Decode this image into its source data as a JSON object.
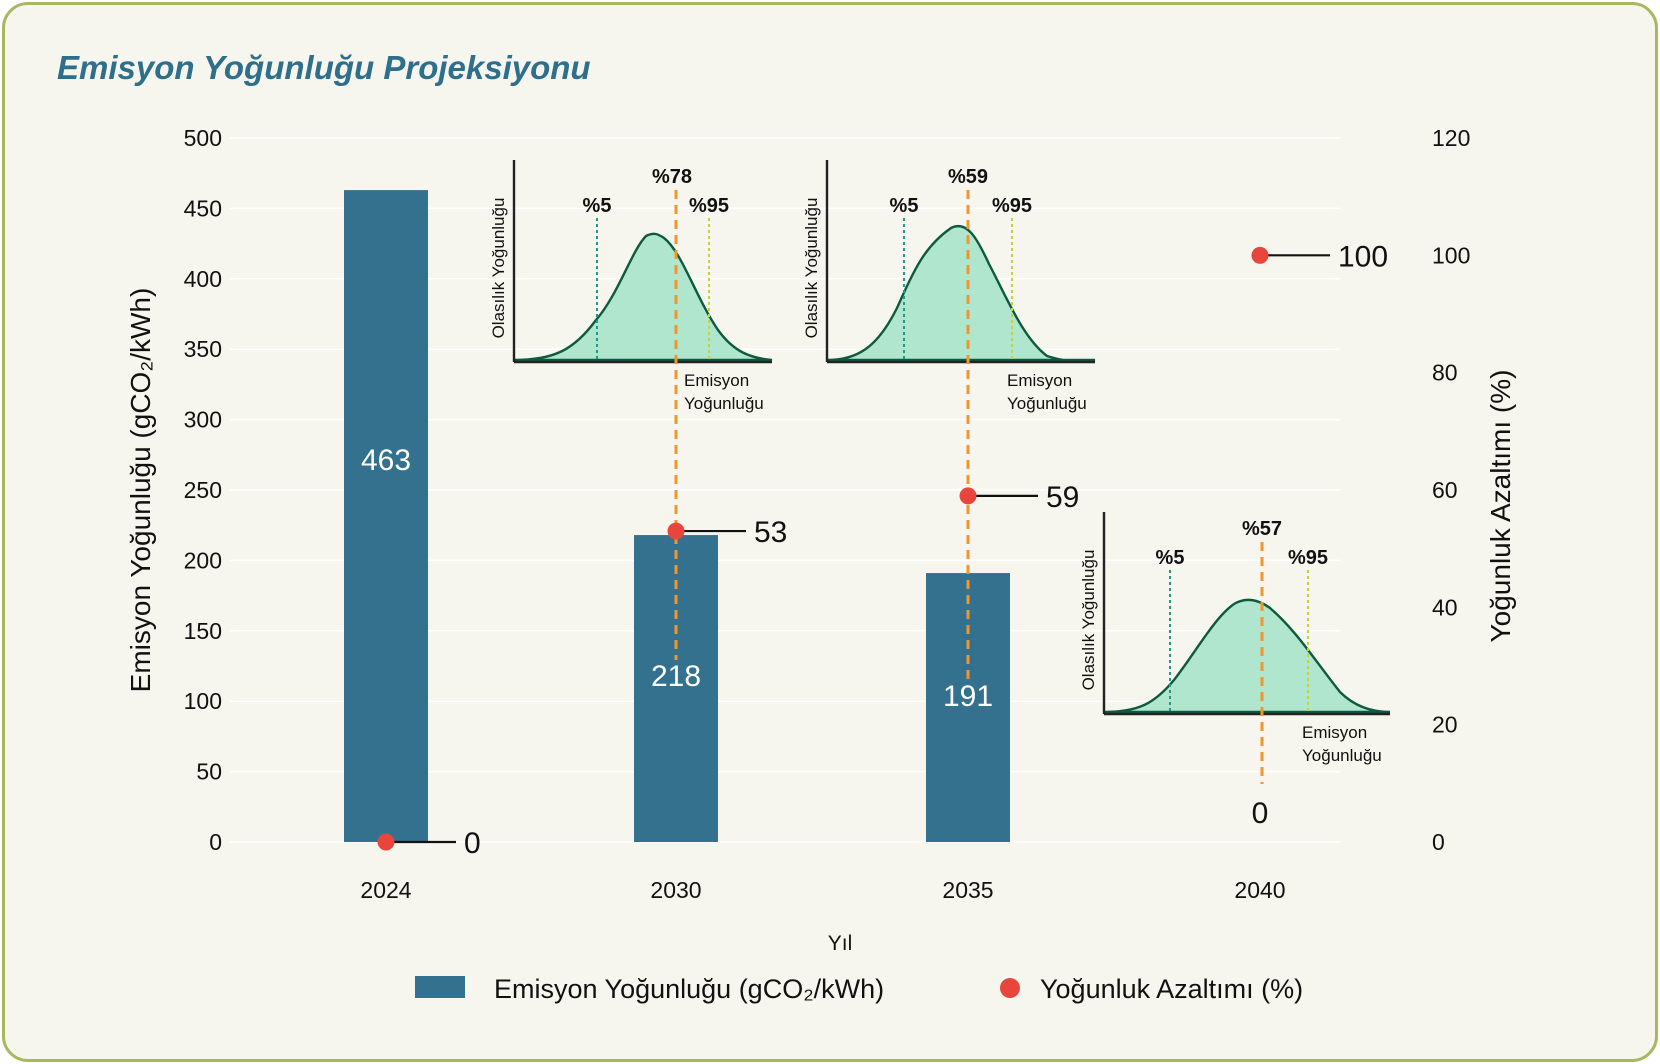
{
  "chart_data": {
    "title": "Emisyon Yoğunluğu Projeksiyonu",
    "type": "bar",
    "xlabel": "Yıl",
    "ylabel_left": "Emisyon Yoğunluğu (gCO₂/kWh)",
    "ylabel_right": "Yoğunluk Azaltımı (%)",
    "categories": [
      "2024",
      "2030",
      "2035",
      "2040"
    ],
    "ylim_left": [
      0,
      500
    ],
    "yticks_left": [
      0,
      50,
      100,
      150,
      200,
      250,
      300,
      350,
      400,
      450,
      500
    ],
    "ylim_right": [
      0,
      120
    ],
    "yticks_right": [
      0,
      20,
      40,
      60,
      80,
      100,
      120
    ],
    "series": [
      {
        "name": "Emisyon Yoğunluğu (gCO₂/kWh)",
        "kind": "bar",
        "axis": "left",
        "color": "#33718f",
        "values": [
          463,
          218,
          191,
          0
        ],
        "labels": [
          "463",
          "218",
          "191",
          "0"
        ]
      },
      {
        "name": "Yoğunluk Azaltımı (%)",
        "kind": "point",
        "axis": "right",
        "color": "#e8453c",
        "values": [
          0,
          53,
          59,
          100
        ],
        "labels": [
          "0",
          "53",
          "59",
          "100"
        ]
      }
    ],
    "distribution_insets": [
      {
        "year": "2030",
        "p5_label": "%5",
        "median_label": "%78",
        "p95_label": "%95",
        "ylabel": "Olasılık Yoğunluğu",
        "xlabel_line1": "Emisyon",
        "xlabel_line2": "Yoğunluğu"
      },
      {
        "year": "2035",
        "p5_label": "%5",
        "median_label": "%59",
        "p95_label": "%95",
        "ylabel": "Olasılık Yoğunluğu",
        "xlabel_line1": "Emisyon",
        "xlabel_line2": "Yoğunluğu"
      },
      {
        "year": "2040",
        "p5_label": "%5",
        "median_label": "%57",
        "p95_label": "%95",
        "ylabel": "Olasılık Yoğunluğu",
        "xlabel_line1": "Emisyon",
        "xlabel_line2": "Yoğunluğu"
      }
    ],
    "legend": [
      {
        "label": "Emisyon Yoğunluğu (gCO₂/kWh)",
        "marker": "bar",
        "color": "#33718f"
      },
      {
        "label": "Yoğunluk Azaltımı (%)",
        "marker": "point",
        "color": "#e8453c"
      }
    ],
    "grid": true,
    "legend_position": "bottom"
  }
}
